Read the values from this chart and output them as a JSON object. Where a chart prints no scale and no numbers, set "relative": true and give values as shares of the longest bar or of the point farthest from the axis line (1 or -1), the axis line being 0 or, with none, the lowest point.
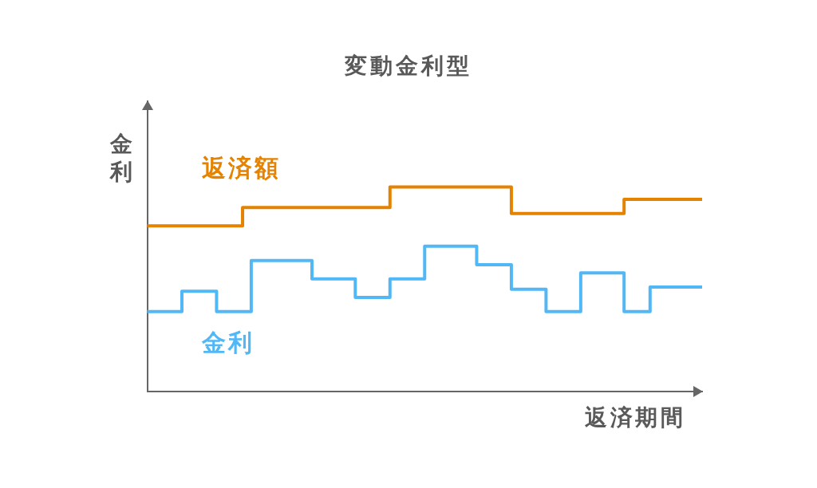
{
  "chart_data": {
    "type": "step",
    "title": "変動金利型",
    "xlabel": "返済期間",
    "ylabel": "金利",
    "relative": true,
    "marker": "none",
    "categories": [
      null,
      null,
      null,
      null,
      null,
      null,
      null,
      null,
      null,
      null,
      null,
      null,
      null,
      null,
      null,
      null,
      null,
      null,
      null,
      null,
      null,
      null,
      null,
      null,
      null,
      null,
      null,
      null,
      null,
      null,
      null,
      null,
      null,
      null,
      null,
      null,
      null,
      null,
      null,
      null,
      null,
      null,
      null,
      null,
      null,
      null,
      null,
      null,
      null,
      null,
      null,
      null,
      null,
      null,
      null,
      null,
      null,
      null,
      null,
      null,
      null,
      null,
      null,
      null,
      null
    ],
    "series": [
      {
        "name": "返済額",
        "color": "#e58300",
        "values": [
          0.81,
          0.81,
          0.81,
          0.81,
          0.81,
          0.81,
          0.81,
          0.81,
          0.81,
          0.81,
          0.81,
          0.9,
          0.9,
          0.9,
          0.9,
          0.9,
          0.9,
          0.9,
          0.9,
          0.9,
          0.9,
          0.9,
          0.9,
          0.9,
          0.9,
          0.9,
          0.9,
          0.9,
          1,
          1,
          1,
          1,
          1,
          1,
          1,
          1,
          1,
          1,
          1,
          1,
          1,
          1,
          0.87,
          0.87,
          0.87,
          0.87,
          0.87,
          0.87,
          0.87,
          0.87,
          0.87,
          0.87,
          0.87,
          0.87,
          0.87,
          0.94,
          0.94,
          0.94,
          0.94,
          0.94,
          0.94,
          0.94,
          0.94,
          0.94,
          0.94
        ]
      },
      {
        "name": "金利",
        "color": "#52b7f5",
        "values": [
          0.39,
          0.39,
          0.39,
          0.39,
          0.49,
          0.49,
          0.49,
          0.49,
          0.39,
          0.39,
          0.39,
          0.39,
          0.64,
          0.64,
          0.64,
          0.64,
          0.64,
          0.64,
          0.64,
          0.55,
          0.55,
          0.55,
          0.55,
          0.55,
          0.46,
          0.46,
          0.46,
          0.46,
          0.55,
          0.55,
          0.55,
          0.55,
          0.71,
          0.71,
          0.71,
          0.71,
          0.71,
          0.71,
          0.62,
          0.62,
          0.62,
          0.62,
          0.5,
          0.5,
          0.5,
          0.5,
          0.39,
          0.39,
          0.39,
          0.39,
          0.58,
          0.58,
          0.58,
          0.58,
          0.58,
          0.39,
          0.39,
          0.39,
          0.51,
          0.51,
          0.51,
          0.51,
          0.51,
          0.51,
          0.51
        ]
      }
    ]
  }
}
